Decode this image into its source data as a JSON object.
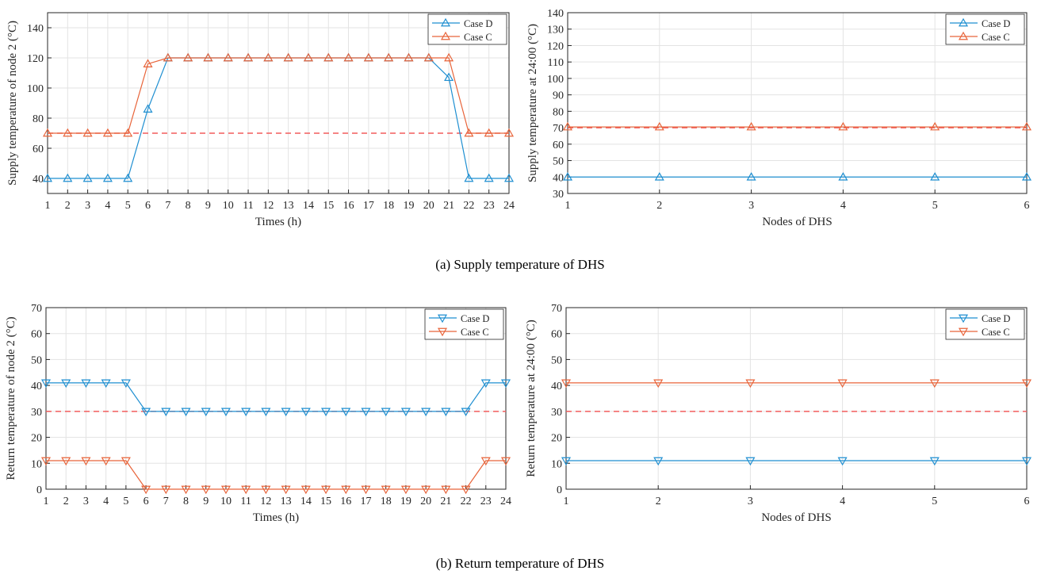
{
  "captions": {
    "a": "(a) Supply temperature of DHS",
    "b": "(b) Return temperature of DHS"
  },
  "colors": {
    "case_d": "#1f8fd1",
    "case_c": "#e8643a",
    "reference": "#f25c5c",
    "grid": "#e3e3e3",
    "axis": "#262626"
  },
  "chart_data": [
    {
      "id": "a-left",
      "type": "line",
      "xlabel": "Times (h)",
      "ylabel": "Supply temperature of node 2 (°C)",
      "xlim": [
        1,
        24
      ],
      "ylim": [
        30,
        150
      ],
      "xticks": [
        1,
        2,
        3,
        4,
        5,
        6,
        7,
        8,
        9,
        10,
        11,
        12,
        13,
        14,
        15,
        16,
        17,
        18,
        19,
        20,
        21,
        22,
        23,
        24
      ],
      "yticks": [
        40,
        60,
        80,
        100,
        120,
        140
      ],
      "marker": "triangle-up",
      "legend_position": "top-right",
      "grid": true,
      "x": [
        1,
        2,
        3,
        4,
        5,
        6,
        7,
        8,
        9,
        10,
        11,
        12,
        13,
        14,
        15,
        16,
        17,
        18,
        19,
        20,
        21,
        22,
        23,
        24
      ],
      "series": [
        {
          "name": "Case D",
          "values": [
            40,
            40,
            40,
            40,
            40,
            86,
            120,
            120,
            120,
            120,
            120,
            120,
            120,
            120,
            120,
            120,
            120,
            120,
            120,
            120,
            107,
            40,
            40,
            40
          ]
        },
        {
          "name": "Case C",
          "values": [
            70,
            70,
            70,
            70,
            70,
            116,
            120,
            120,
            120,
            120,
            120,
            120,
            120,
            120,
            120,
            120,
            120,
            120,
            120,
            120,
            120,
            70,
            70,
            70
          ]
        }
      ],
      "reference_line": 70
    },
    {
      "id": "a-right",
      "type": "line",
      "xlabel": "Nodes of DHS",
      "ylabel": "Supply temperature at 24:00 (°C)",
      "xlim": [
        1,
        6
      ],
      "ylim": [
        30,
        140
      ],
      "xticks": [
        1,
        2,
        3,
        4,
        5,
        6
      ],
      "yticks": [
        30,
        40,
        50,
        60,
        70,
        80,
        90,
        100,
        110,
        120,
        130,
        140
      ],
      "marker": "triangle-up",
      "legend_position": "top-right",
      "grid": true,
      "x": [
        1,
        2,
        3,
        4,
        5,
        6
      ],
      "series": [
        {
          "name": "Case D",
          "values": [
            40,
            40,
            40,
            40,
            40,
            40
          ]
        },
        {
          "name": "Case C",
          "values": [
            70.5,
            70.5,
            70.5,
            70.5,
            70.5,
            70.5
          ]
        }
      ],
      "reference_line": 70
    },
    {
      "id": "b-left",
      "type": "line",
      "xlabel": "Times (h)",
      "ylabel": "Return temperature of node 2 (°C)",
      "xlim": [
        1,
        24
      ],
      "ylim": [
        0,
        70
      ],
      "xticks": [
        1,
        2,
        3,
        4,
        5,
        6,
        7,
        8,
        9,
        10,
        11,
        12,
        13,
        14,
        15,
        16,
        17,
        18,
        19,
        20,
        21,
        22,
        23,
        24
      ],
      "yticks": [
        0,
        10,
        20,
        30,
        40,
        50,
        60,
        70
      ],
      "marker": "triangle-down",
      "legend_position": "top-right",
      "grid": true,
      "x": [
        1,
        2,
        3,
        4,
        5,
        6,
        7,
        8,
        9,
        10,
        11,
        12,
        13,
        14,
        15,
        16,
        17,
        18,
        19,
        20,
        21,
        22,
        23,
        24
      ],
      "series": [
        {
          "name": "Case D",
          "values": [
            41,
            41,
            41,
            41,
            41,
            30,
            30,
            30,
            30,
            30,
            30,
            30,
            30,
            30,
            30,
            30,
            30,
            30,
            30,
            30,
            30,
            30,
            41,
            41
          ]
        },
        {
          "name": "Case C",
          "values": [
            11,
            11,
            11,
            11,
            11,
            0,
            0,
            0,
            0,
            0,
            0,
            0,
            0,
            0,
            0,
            0,
            0,
            0,
            0,
            0,
            0,
            0,
            11,
            11
          ]
        }
      ],
      "reference_line": 30
    },
    {
      "id": "b-right",
      "type": "line",
      "xlabel": "Nodes of DHS",
      "ylabel": "Return temperature at 24:00 (°C)",
      "xlim": [
        1,
        6
      ],
      "ylim": [
        0,
        70
      ],
      "xticks": [
        1,
        2,
        3,
        4,
        5,
        6
      ],
      "yticks": [
        0,
        10,
        20,
        30,
        40,
        50,
        60,
        70
      ],
      "marker": "triangle-down",
      "legend_position": "top-right",
      "grid": true,
      "x": [
        1,
        2,
        3,
        4,
        5,
        6
      ],
      "series": [
        {
          "name": "Case D",
          "values": [
            11,
            11,
            11,
            11,
            11,
            11
          ]
        },
        {
          "name": "Case C",
          "values": [
            41,
            41,
            41,
            41,
            41,
            41
          ]
        }
      ],
      "reference_line": 30
    }
  ]
}
